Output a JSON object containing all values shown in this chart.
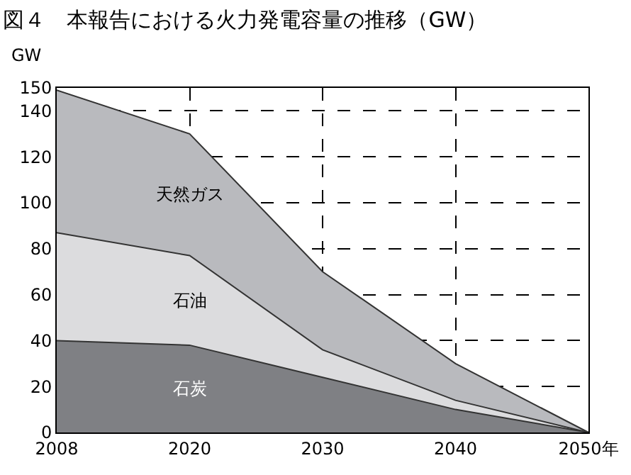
{
  "chart_data": {
    "type": "area",
    "stacked": true,
    "title": "図４　本報告における火力発電容量の推移（GW）",
    "ylabel": "GW",
    "categories": [
      "2008",
      "2020",
      "2030",
      "2040",
      "2050年"
    ],
    "series": [
      {
        "name": "石炭",
        "color": "#7f8084",
        "values": [
          40,
          38,
          24,
          10,
          0
        ]
      },
      {
        "name": "石油",
        "color": "#dcdcde",
        "values": [
          47,
          39,
          12,
          4,
          0
        ]
      },
      {
        "name": "天然ガス",
        "color": "#b9babe",
        "values": [
          62,
          53,
          34,
          16,
          0
        ]
      }
    ],
    "ylim": [
      0,
      150
    ],
    "yticks": [
      0,
      20,
      40,
      60,
      80,
      100,
      120,
      140,
      150
    ],
    "grid": true,
    "legend": false,
    "line_style": "solid"
  }
}
